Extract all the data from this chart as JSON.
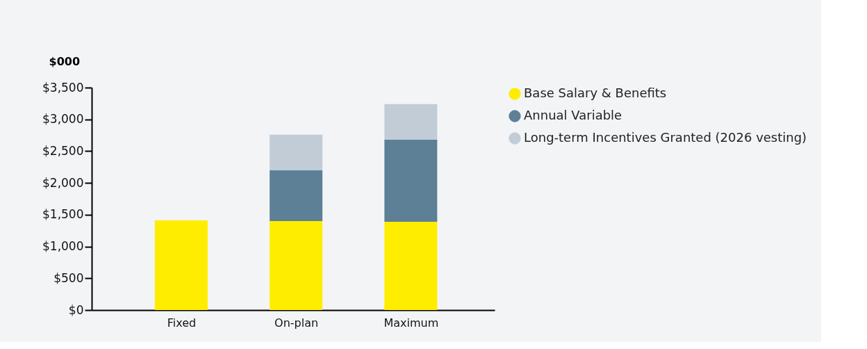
{
  "chart_data": {
    "type": "bar",
    "stacked": true,
    "ylabel": "$000",
    "categories": [
      "Fixed",
      "On-plan",
      "Maximum"
    ],
    "series": [
      {
        "name": "Base Salary & Benefits",
        "color": "#ffed00",
        "values": [
          1410,
          1400,
          1390
        ]
      },
      {
        "name": "Annual Variable",
        "color": "#5d8096",
        "values": [
          null,
          800,
          1290
        ]
      },
      {
        "name": "Long-term Incentives Granted (2026 vesting)",
        "color": "#c1ccd6",
        "values": [
          null,
          560,
          560
        ]
      }
    ],
    "ylim": [
      0,
      3500
    ],
    "yticks": [
      {
        "value": 0,
        "label": "$0"
      },
      {
        "value": 500,
        "label": "$500"
      },
      {
        "value": 1000,
        "label": "$1,000"
      },
      {
        "value": 1500,
        "label": "$1,500"
      },
      {
        "value": 2000,
        "label": "$2,000"
      },
      {
        "value": 2500,
        "label": "$2,500"
      },
      {
        "value": 3000,
        "label": "$3,000"
      },
      {
        "value": 3500,
        "label": "$3,500"
      }
    ],
    "grid": false,
    "legend": "right"
  }
}
